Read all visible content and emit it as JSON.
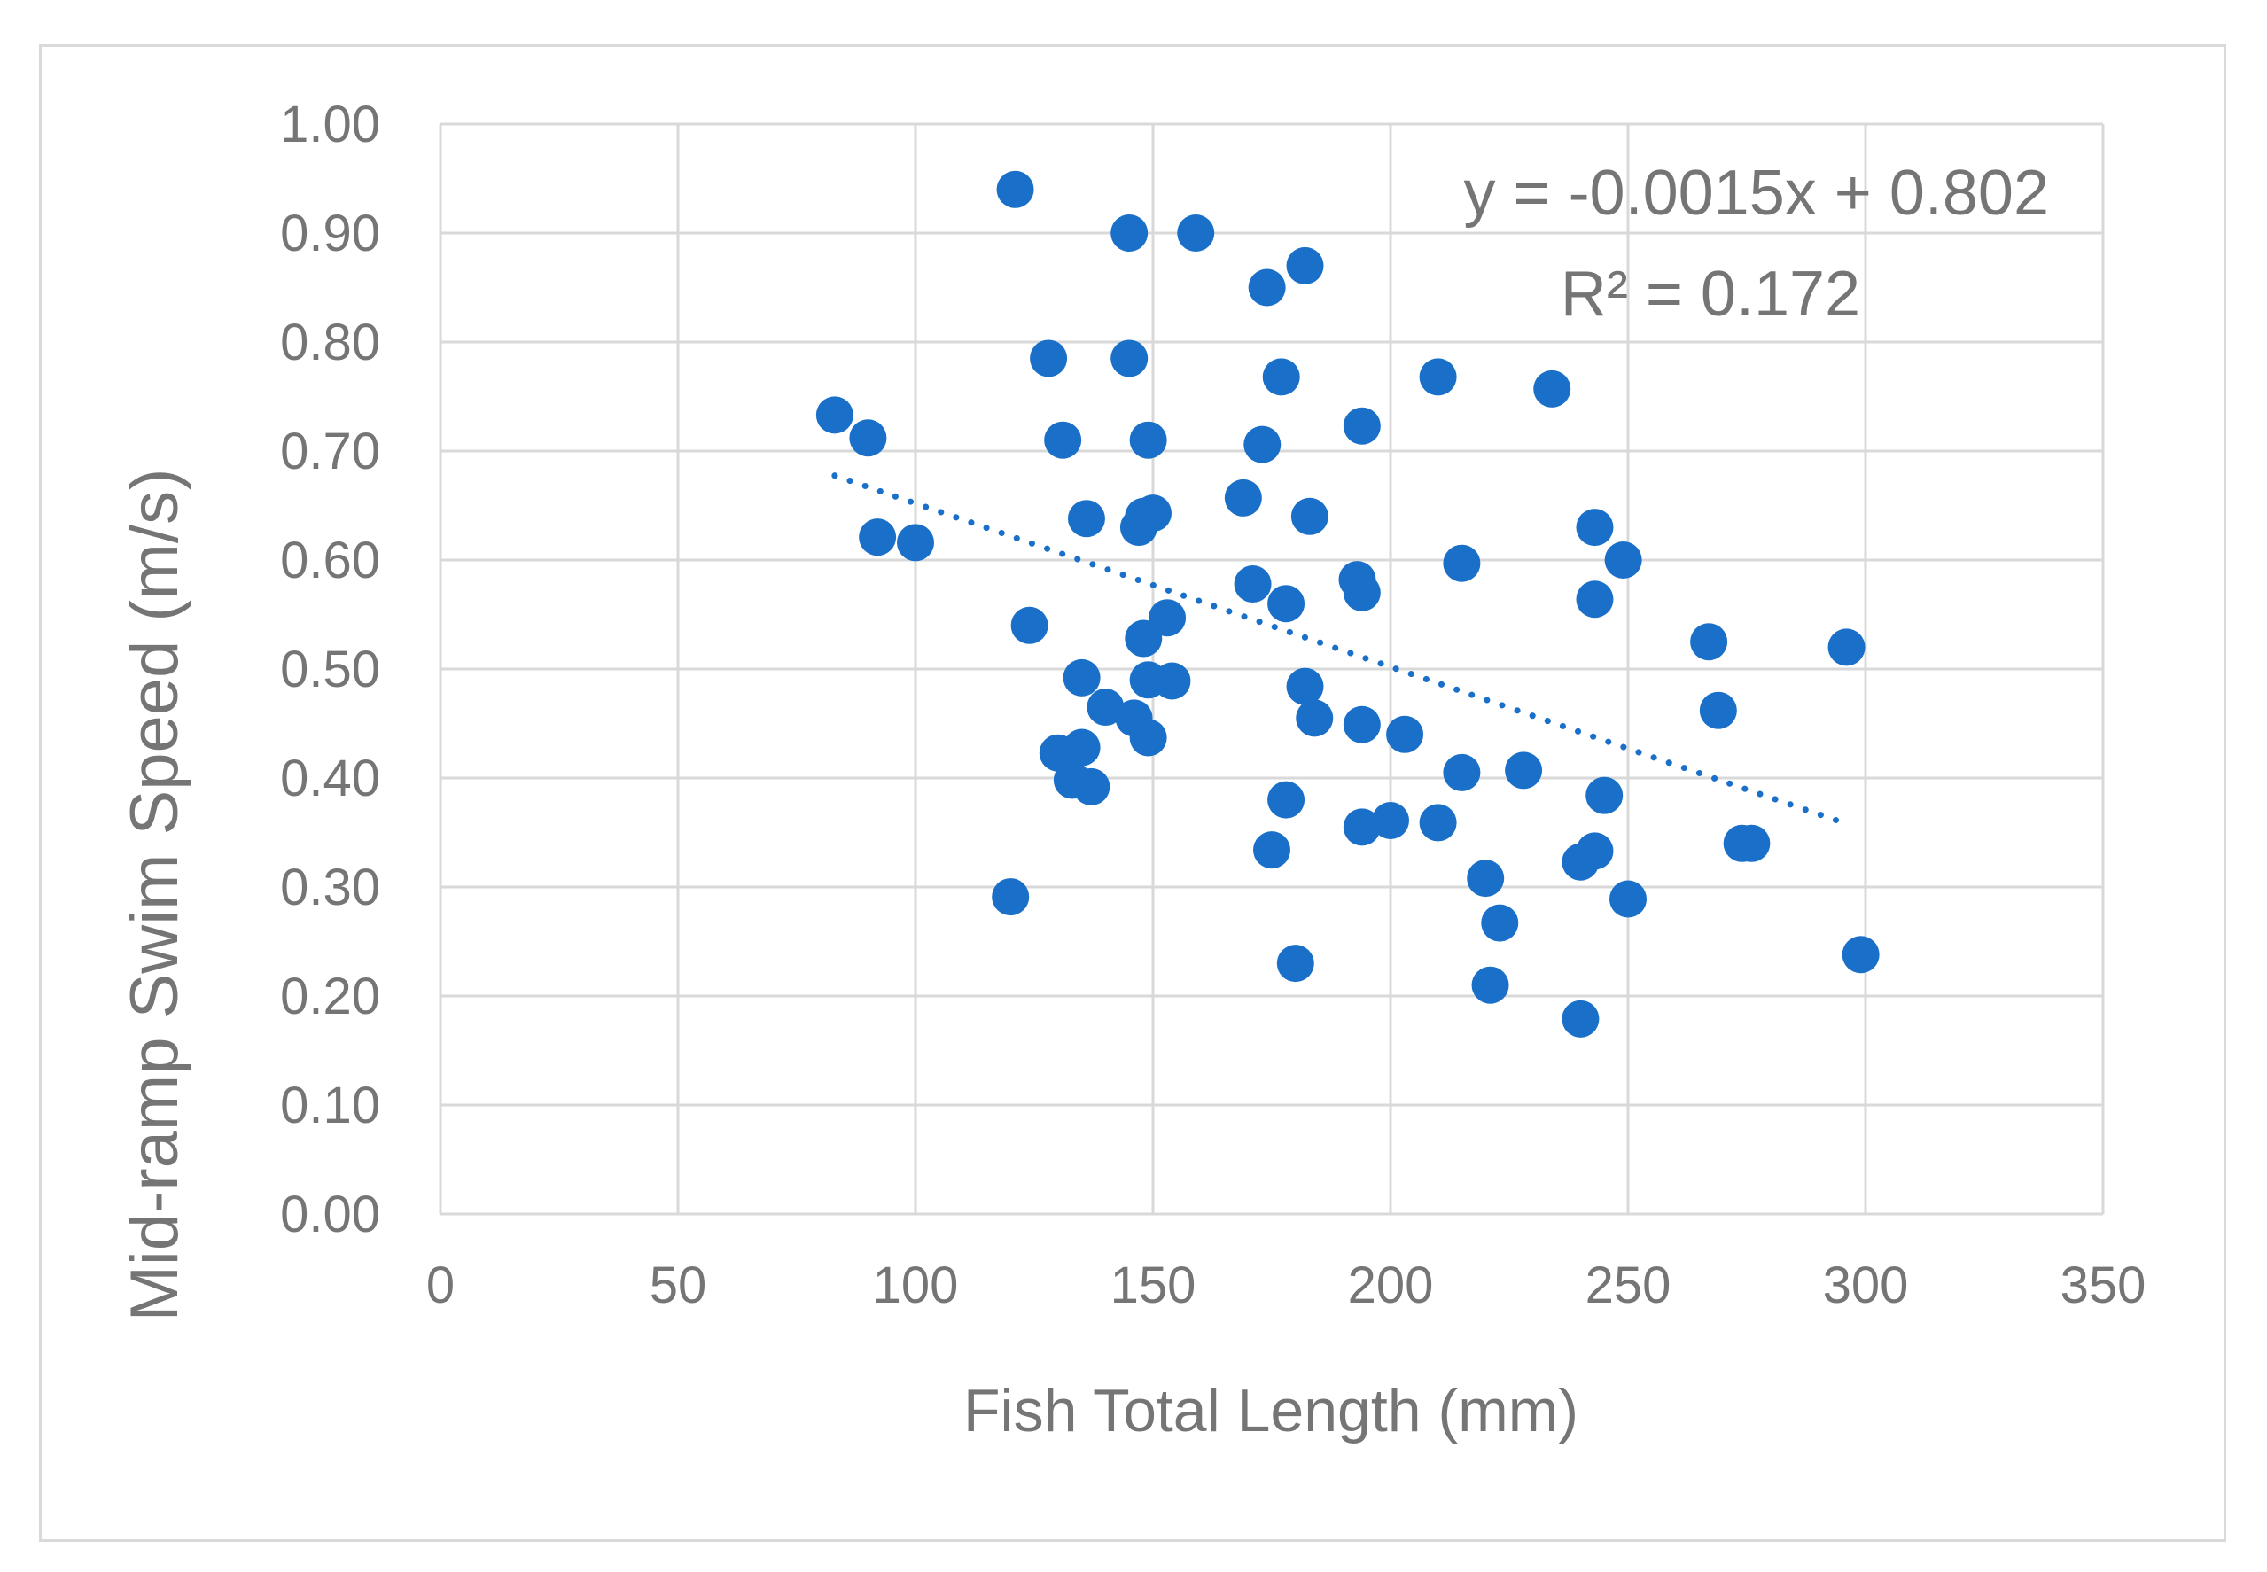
{
  "chart_data": {
    "type": "scatter",
    "title": "",
    "xlabel": "Fish Total Length (mm)",
    "ylabel": "Mid-ramp Swim Speed (m/s)",
    "xlim": [
      0,
      350
    ],
    "ylim": [
      0,
      1.0
    ],
    "x_ticks": [
      "0",
      "50",
      "100",
      "150",
      "200",
      "250",
      "300",
      "350"
    ],
    "y_ticks": [
      "0.00",
      "0.10",
      "0.20",
      "0.30",
      "0.40",
      "0.50",
      "0.60",
      "0.70",
      "0.80",
      "0.90",
      "1.00"
    ],
    "grid": true,
    "marker_color": "#1a70c8",
    "grid_color": "#d9d9d9",
    "text_color": "#757575",
    "trendline": {
      "type": "linear",
      "style": "dotted",
      "slope": -0.0015,
      "intercept": 0.802,
      "x_range": [
        83,
        296
      ]
    },
    "annotations": {
      "equation": "y = -0.0015x + 0.802",
      "r_squared": "R² = 0.172"
    },
    "points": [
      [
        121,
        0.94
      ],
      [
        145,
        0.9
      ],
      [
        159,
        0.9
      ],
      [
        174,
        0.85
      ],
      [
        182,
        0.87
      ],
      [
        128,
        0.785
      ],
      [
        145,
        0.785
      ],
      [
        177,
        0.768
      ],
      [
        210,
        0.768
      ],
      [
        234,
        0.757
      ],
      [
        83,
        0.733
      ],
      [
        90,
        0.712
      ],
      [
        131,
        0.71
      ],
      [
        149,
        0.71
      ],
      [
        173,
        0.706
      ],
      [
        194,
        0.723
      ],
      [
        92,
        0.621
      ],
      [
        100,
        0.616
      ],
      [
        136,
        0.638
      ],
      [
        148,
        0.64
      ],
      [
        150,
        0.643
      ],
      [
        147,
        0.63
      ],
      [
        169,
        0.657
      ],
      [
        183,
        0.64
      ],
      [
        243,
        0.63
      ],
      [
        249,
        0.6
      ],
      [
        215,
        0.597
      ],
      [
        171,
        0.578
      ],
      [
        178,
        0.56
      ],
      [
        193,
        0.582
      ],
      [
        194,
        0.57
      ],
      [
        243,
        0.564
      ],
      [
        124,
        0.54
      ],
      [
        153,
        0.547
      ],
      [
        148,
        0.528
      ],
      [
        267,
        0.525
      ],
      [
        296,
        0.52
      ],
      [
        135,
        0.492
      ],
      [
        149,
        0.49
      ],
      [
        154,
        0.489
      ],
      [
        182,
        0.484
      ],
      [
        140,
        0.465
      ],
      [
        146,
        0.455
      ],
      [
        149,
        0.437
      ],
      [
        184,
        0.455
      ],
      [
        194,
        0.449
      ],
      [
        203,
        0.44
      ],
      [
        269,
        0.462
      ],
      [
        130,
        0.423
      ],
      [
        135,
        0.428
      ],
      [
        133,
        0.398
      ],
      [
        137,
        0.392
      ],
      [
        215,
        0.405
      ],
      [
        228,
        0.407
      ],
      [
        178,
        0.38
      ],
      [
        245,
        0.384
      ],
      [
        194,
        0.355
      ],
      [
        200,
        0.361
      ],
      [
        210,
        0.359
      ],
      [
        175,
        0.334
      ],
      [
        243,
        0.333
      ],
      [
        240,
        0.323
      ],
      [
        274,
        0.34
      ],
      [
        276,
        0.34
      ],
      [
        220,
        0.308
      ],
      [
        120,
        0.291
      ],
      [
        250,
        0.289
      ],
      [
        223,
        0.267
      ],
      [
        180,
        0.23
      ],
      [
        299,
        0.238
      ],
      [
        221,
        0.21
      ],
      [
        240,
        0.179
      ]
    ]
  }
}
